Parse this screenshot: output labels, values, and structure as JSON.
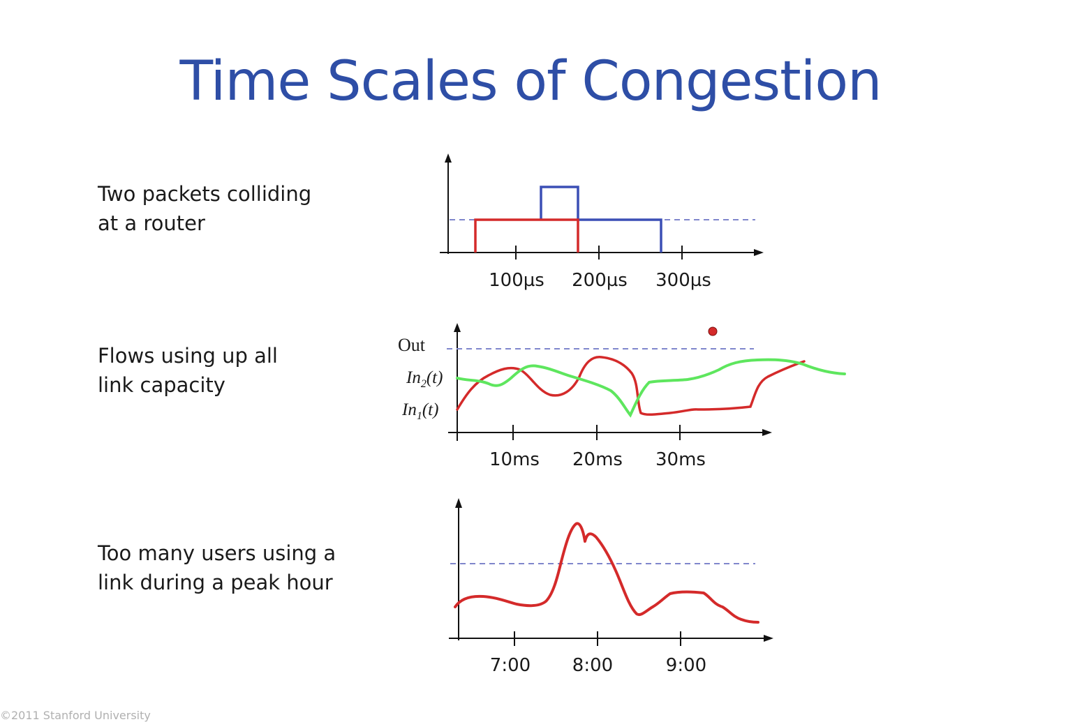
{
  "slide": {
    "title": "Time Scales of Congestion",
    "footer": "©2011 Stanford University"
  },
  "colors": {
    "title": "#2e4ea6",
    "red_curve": "#d42a2a",
    "blue_curve": "#3b4fb5",
    "green_curve": "#5ee65e",
    "dashed_capacity": "#7f86cc",
    "axes": "#111111"
  },
  "rows": [
    {
      "label_lines": [
        "Two packets colliding",
        "at a router"
      ],
      "tick_labels": [
        "100µs",
        "200µs",
        "300µs"
      ]
    },
    {
      "label_lines": [
        "Flows using up all",
        "link capacity"
      ],
      "tick_labels": [
        "10ms",
        "20ms",
        "30ms"
      ],
      "y_labels": {
        "out": "Out",
        "in2_main": "In",
        "in2_sub": "2",
        "in2_suffix": "(t)",
        "in1_main": "In",
        "in1_sub": "1",
        "in1_suffix": "(t)"
      }
    },
    {
      "label_lines": [
        "Too many users using a",
        "link during a peak hour"
      ],
      "tick_labels": [
        "7:00",
        "8:00",
        "9:00"
      ]
    }
  ]
}
